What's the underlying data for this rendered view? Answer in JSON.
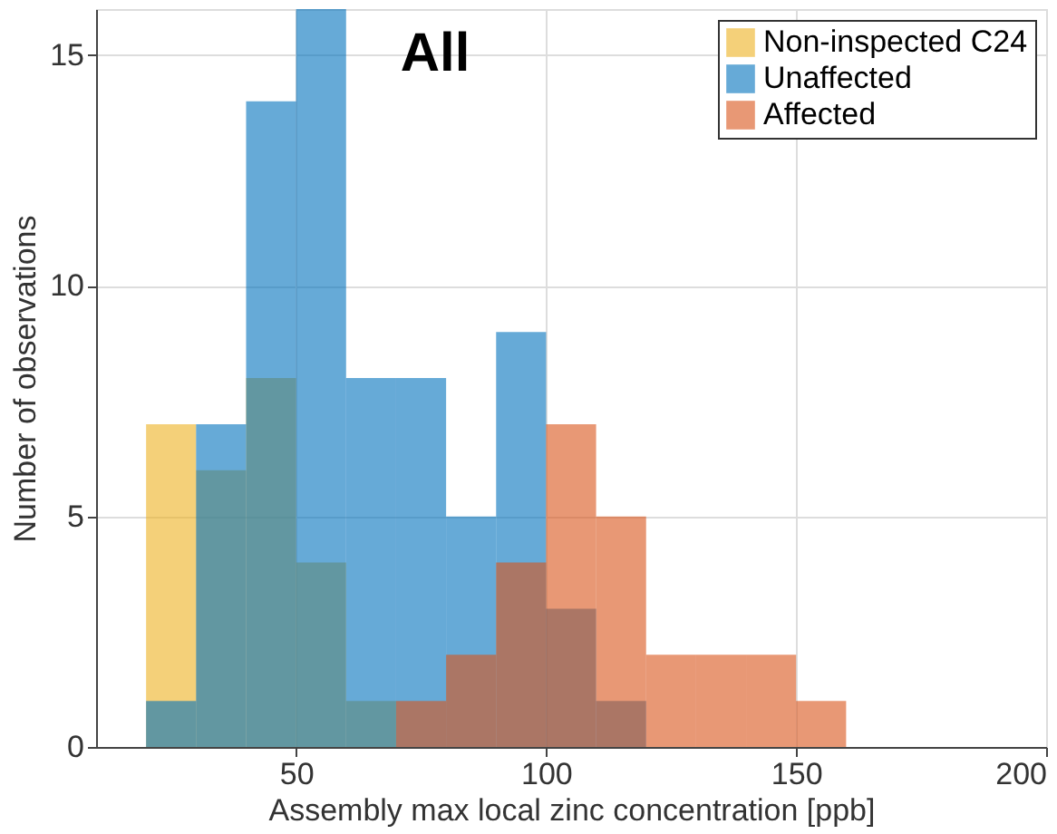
{
  "chart_data": {
    "type": "histogram",
    "title": "All",
    "xlabel": "Assembly max local zinc concentration [ppb]",
    "ylabel": "Number of observations",
    "bins": [
      20,
      30,
      40,
      50,
      60,
      70,
      80,
      90,
      100,
      110,
      120,
      130,
      140,
      150,
      160
    ],
    "series": [
      {
        "name": "Non-inspected C24",
        "color": "#edb120",
        "values": [
          7,
          6,
          8,
          4,
          1,
          0,
          0,
          0,
          0,
          0,
          0,
          0,
          0,
          0
        ]
      },
      {
        "name": "Unaffected",
        "color": "#0072bd",
        "values": [
          1,
          7,
          14,
          16,
          8,
          8,
          5,
          9,
          3,
          1,
          0,
          0,
          0,
          0
        ]
      },
      {
        "name": "Affected",
        "color": "#d95319",
        "values": [
          0,
          0,
          0,
          0,
          0,
          1,
          2,
          4,
          7,
          5,
          2,
          2,
          2,
          1
        ]
      }
    ],
    "xlim": [
      10,
      200
    ],
    "xticks": [
      50,
      100,
      150,
      200
    ],
    "ylim": [
      0,
      16
    ],
    "yticks": [
      0,
      5,
      10,
      15
    ],
    "grid": true,
    "legend": "top right"
  }
}
